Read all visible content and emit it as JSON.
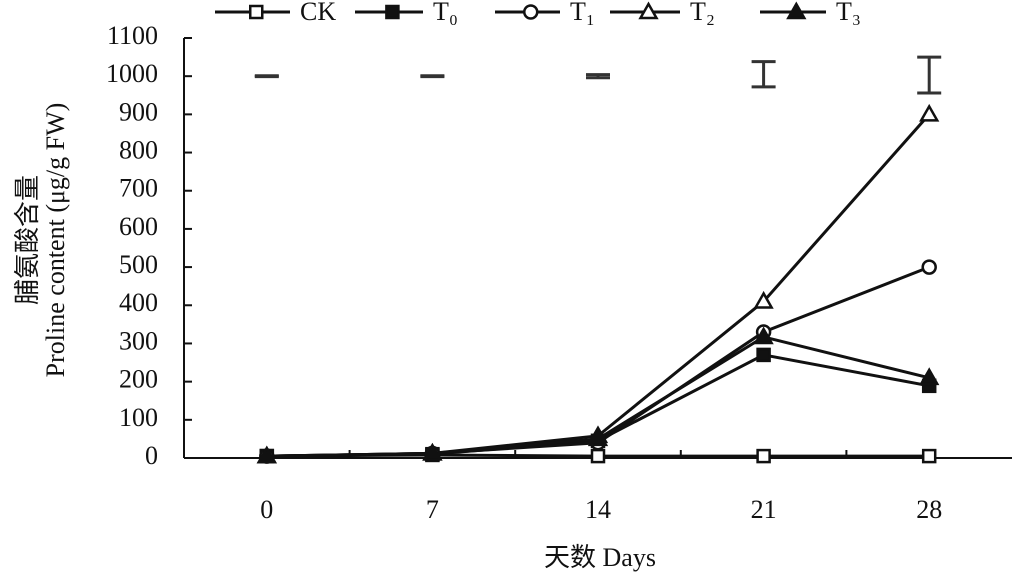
{
  "chart_data": {
    "type": "line",
    "y_label_lines": [
      "脯氨酸含量",
      "Proline content (μg/g FW)"
    ],
    "x_label": "天数 Days",
    "categories": [
      "0",
      "7",
      "14",
      "21",
      "28"
    ],
    "ylim": [
      0,
      1100
    ],
    "yticks": [
      0,
      100,
      200,
      300,
      400,
      500,
      600,
      700,
      800,
      900,
      1000,
      1100
    ],
    "grid": false,
    "legend": "top",
    "series": [
      {
        "name": "CK",
        "color": "#111111",
        "marker": "square",
        "filled": false,
        "values": [
          5,
          8,
          5,
          5,
          5
        ]
      },
      {
        "name": "T₀",
        "color": "#111111",
        "marker": "square",
        "filled": true,
        "values": [
          5,
          10,
          45,
          270,
          189
        ]
      },
      {
        "name": "T₁",
        "color": "#111111",
        "marker": "circle",
        "filled": false,
        "values": [
          5,
          12,
          40,
          330,
          500
        ]
      },
      {
        "name": "T₂",
        "color": "#111111",
        "marker": "triangle",
        "filled": false,
        "values": [
          5,
          12,
          58,
          410,
          900
        ]
      },
      {
        "name": "T₃",
        "color": "#111111",
        "marker": "triangle",
        "filled": true,
        "values": [
          5,
          12,
          50,
          317,
          210
        ]
      }
    ],
    "lsd_bars": {
      "color": "#333333",
      "values": [
        1000,
        1000,
        1000,
        1005,
        1003
      ],
      "errors": [
        1,
        1,
        4,
        33,
        47
      ]
    }
  }
}
